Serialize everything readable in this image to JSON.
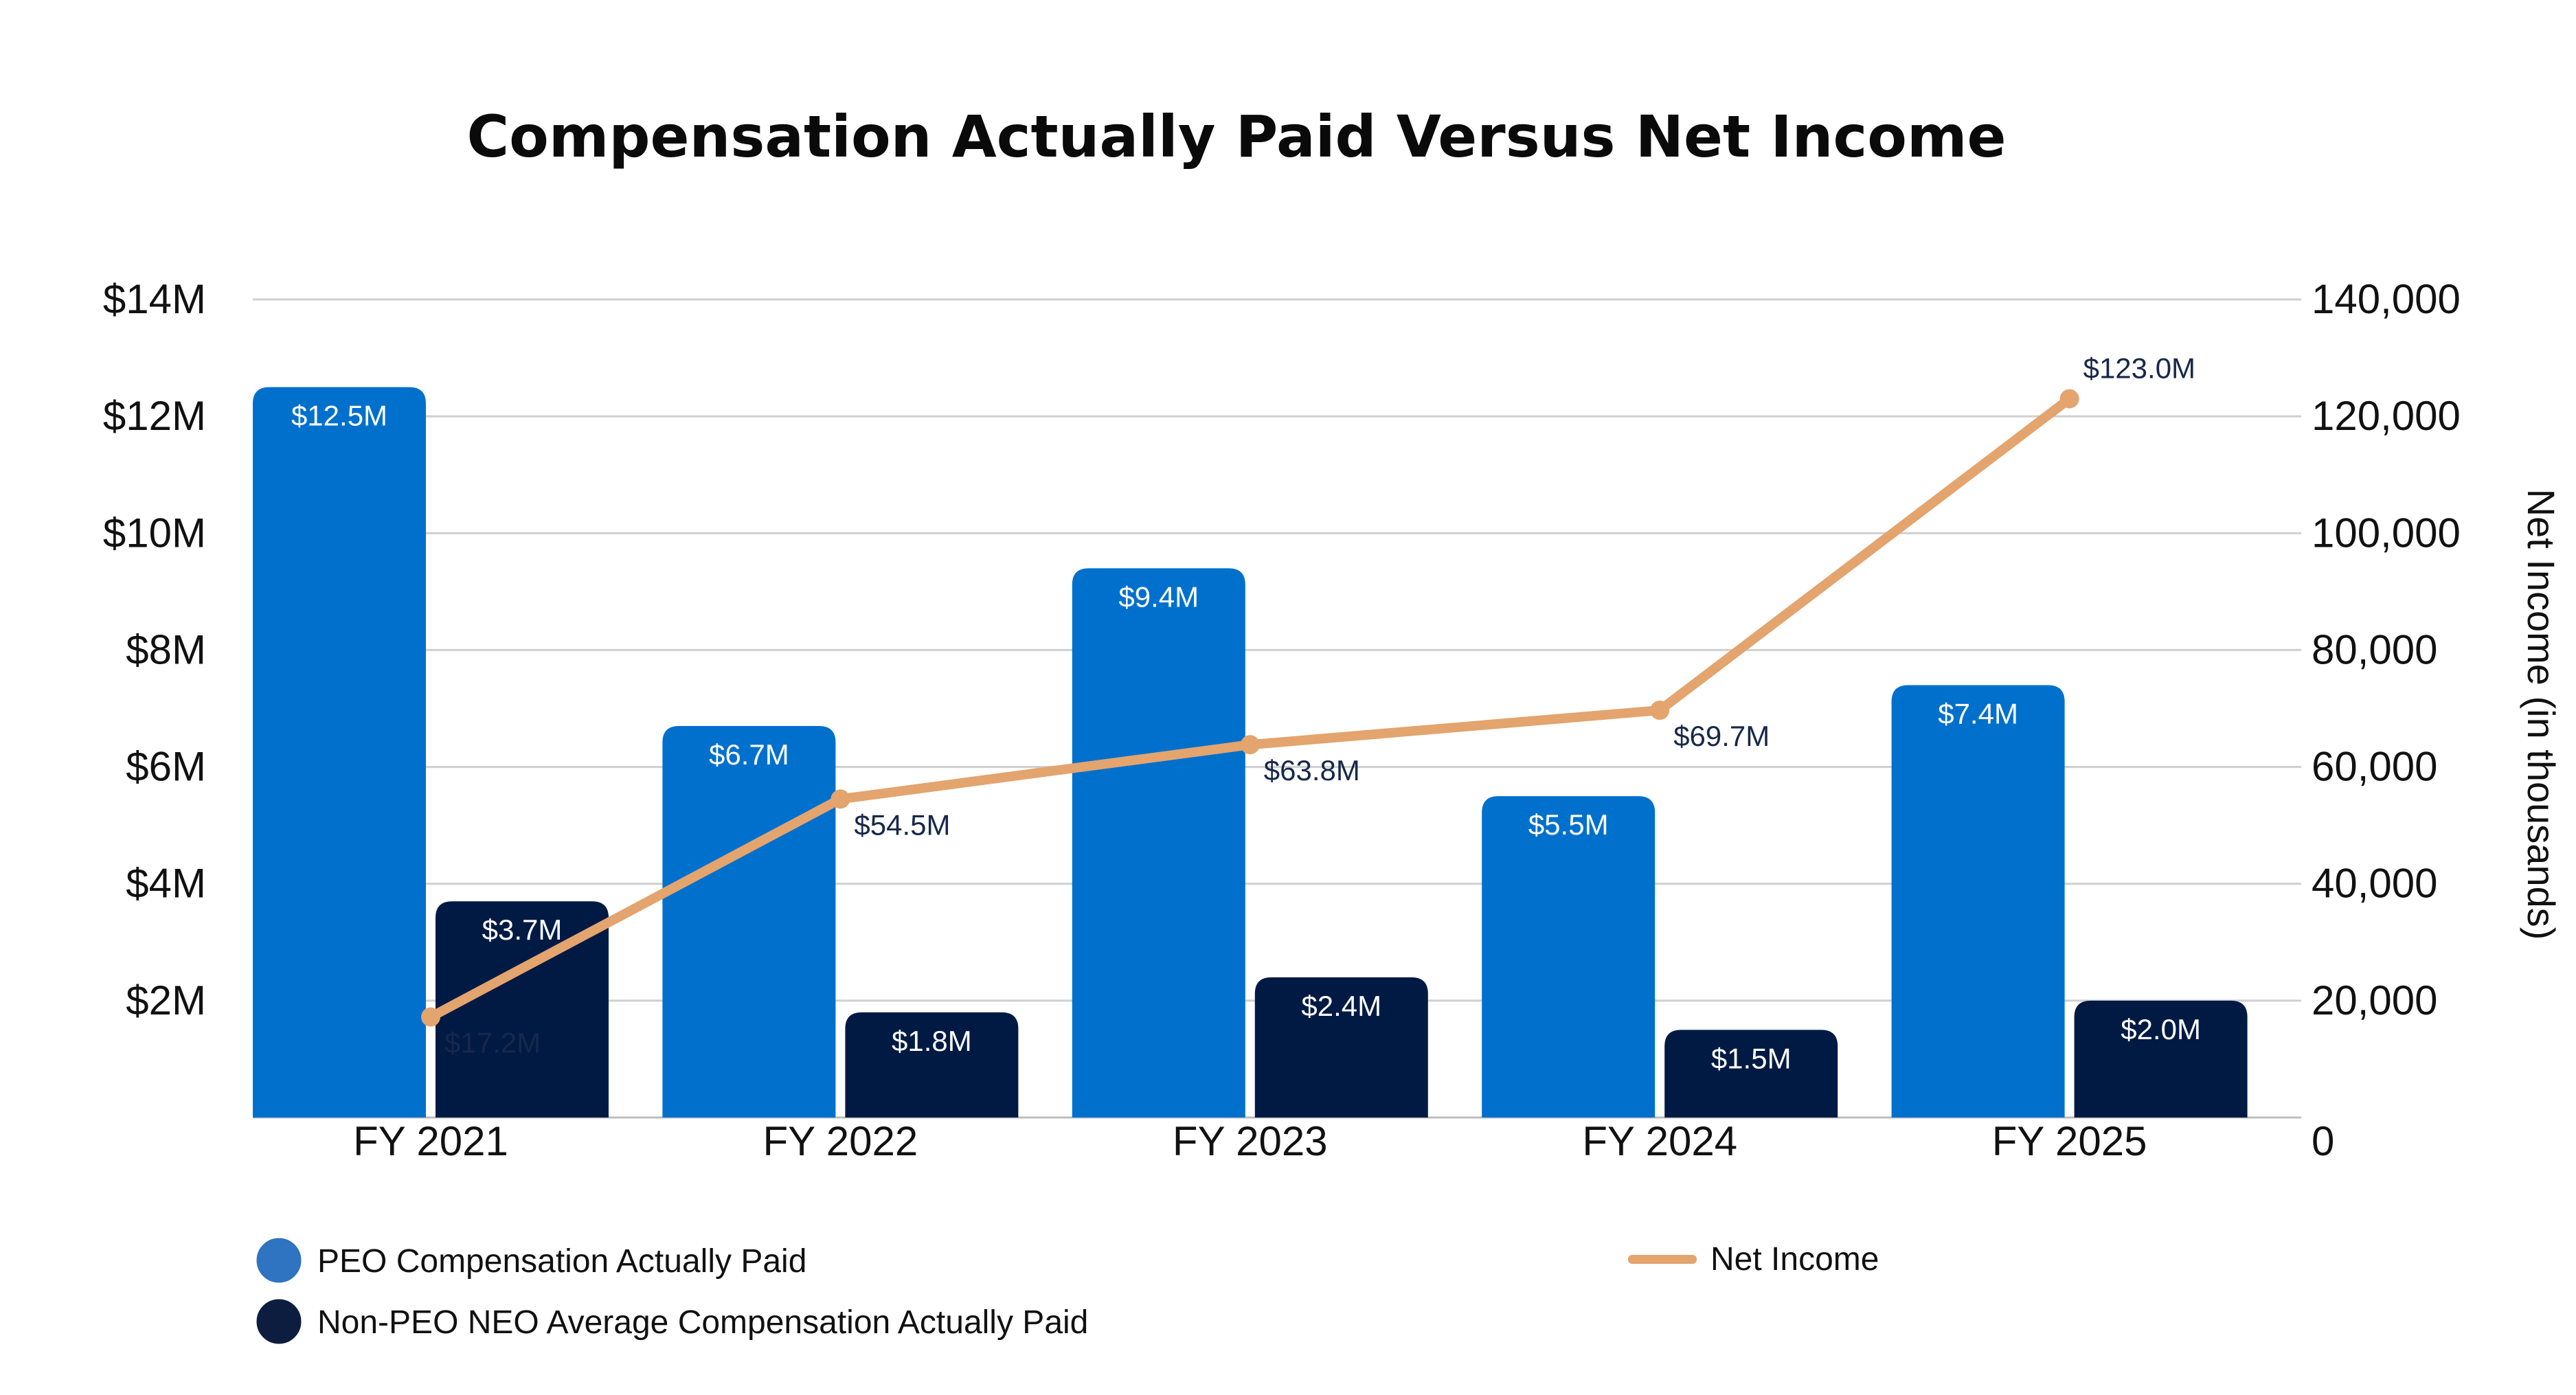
{
  "chart_data": {
    "type": "bar",
    "title": "Compensation Actually Paid Versus Net Income",
    "categories": [
      "FY 2021",
      "FY 2022",
      "FY 2023",
      "FY 2024",
      "FY 2025"
    ],
    "left_axis": {
      "ylim": [
        0,
        14
      ],
      "ticks": [
        2,
        4,
        6,
        8,
        10,
        12,
        14
      ],
      "tick_labels": [
        "$2M",
        "$4M",
        "$6M",
        "$8M",
        "$10M",
        "$12M",
        "$14M"
      ]
    },
    "right_axis": {
      "label": "Net Income (in thousands)",
      "ylim": [
        0,
        140000
      ],
      "ticks": [
        0,
        20000,
        40000,
        60000,
        80000,
        100000,
        120000,
        140000
      ],
      "tick_labels": [
        "0",
        "20,000",
        "40,000",
        "60,000",
        "80,000",
        "100,000",
        "120,000",
        "140,000"
      ]
    },
    "series": [
      {
        "name": "PEO Compensation Actually Paid",
        "type": "bar",
        "axis": "left",
        "color": "#0070cd",
        "values": [
          12.5,
          6.7,
          9.4,
          5.5,
          7.4
        ],
        "labels": [
          "$12.5M",
          "$6.7M",
          "$9.4M",
          "$5.5M",
          "$7.4M"
        ]
      },
      {
        "name": "Non-PEO NEO Average Compensation Actually Paid",
        "type": "bar",
        "axis": "left",
        "color": "#001a44",
        "values": [
          3.7,
          1.8,
          2.4,
          1.5,
          2.0
        ],
        "labels": [
          "$3.7M",
          "$1.8M",
          "$2.4M",
          "$1.5M",
          "$2.0M"
        ]
      },
      {
        "name": "Net Income",
        "type": "line",
        "axis": "right",
        "color": "#e3a46e",
        "values": [
          17200,
          54500,
          63800,
          69700,
          123000
        ],
        "labels": [
          "$17.2M",
          "$54.5M",
          "$63.8M",
          "$69.7M",
          "$123.0M"
        ]
      }
    ],
    "grid": true,
    "legend_position": "bottom"
  },
  "legend": {
    "peo": "PEO Compensation Actually Paid",
    "neo": "Non-PEO NEO Average Compensation Actually Paid",
    "net_income": "Net Income"
  }
}
